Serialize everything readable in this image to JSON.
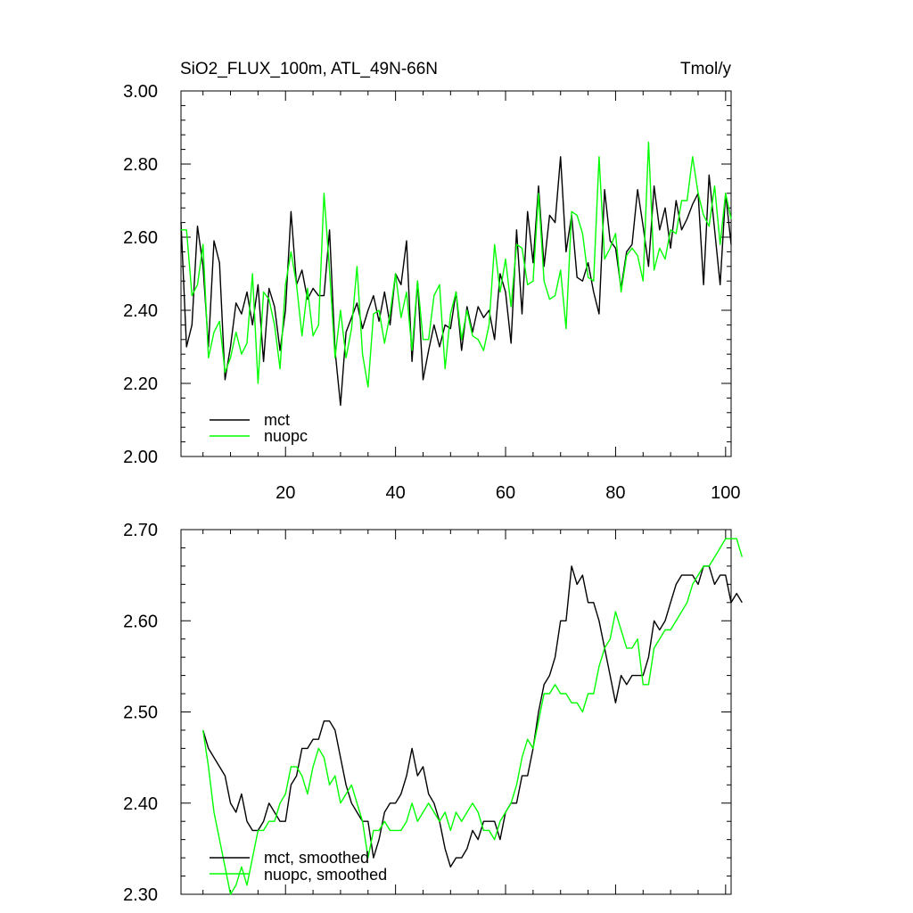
{
  "chart_data": [
    {
      "type": "line",
      "title": "SiO2_FLUX_100m, ATL_49N-66N",
      "units": "Tmol/y",
      "xlim": [
        1,
        101
      ],
      "ylim": [
        2.0,
        3.0
      ],
      "x_ticks": [
        20,
        40,
        60,
        80,
        100
      ],
      "x_tick_labels": [
        "20",
        "40",
        "60",
        "80",
        "100"
      ],
      "y_ticks": [
        2.0,
        2.2,
        2.4,
        2.6,
        2.8,
        3.0
      ],
      "y_tick_labels": [
        "2.00",
        "2.20",
        "2.40",
        "2.60",
        "2.80",
        "3.00"
      ],
      "legend_position": "bottom-left",
      "series": [
        {
          "name": "mct",
          "color": "#000000",
          "x_start": 1,
          "values": [
            2.64,
            2.3,
            2.36,
            2.63,
            2.52,
            2.3,
            2.59,
            2.53,
            2.21,
            2.3,
            2.42,
            2.39,
            2.45,
            2.36,
            2.47,
            2.26,
            2.46,
            2.41,
            2.29,
            2.4,
            2.67,
            2.47,
            2.51,
            2.43,
            2.46,
            2.44,
            2.44,
            2.62,
            2.29,
            2.14,
            2.34,
            2.38,
            2.42,
            2.35,
            2.4,
            2.44,
            2.37,
            2.45,
            2.36,
            2.5,
            2.47,
            2.59,
            2.26,
            2.48,
            2.21,
            2.29,
            2.36,
            2.3,
            2.36,
            2.35,
            2.45,
            2.29,
            2.41,
            2.34,
            2.41,
            2.38,
            2.4,
            2.32,
            2.5,
            2.45,
            2.31,
            2.62,
            2.39,
            2.67,
            2.53,
            2.74,
            2.52,
            2.66,
            2.64,
            2.82,
            2.56,
            2.66,
            2.49,
            2.48,
            2.53,
            2.45,
            2.39,
            2.73,
            2.59,
            2.57,
            2.46,
            2.56,
            2.58,
            2.73,
            2.63,
            2.52,
            2.74,
            2.62,
            2.68,
            2.57,
            2.7,
            2.62,
            2.65,
            2.69,
            2.72,
            2.47,
            2.77,
            2.62,
            2.47,
            2.72,
            2.58
          ]
        },
        {
          "name": "nuopc",
          "color": "#00ff00",
          "x_start": 1,
          "values": [
            2.62,
            2.62,
            2.44,
            2.47,
            2.58,
            2.27,
            2.34,
            2.37,
            2.23,
            2.27,
            2.34,
            2.28,
            2.31,
            2.5,
            2.2,
            2.45,
            2.43,
            2.36,
            2.24,
            2.47,
            2.56,
            2.47,
            2.33,
            2.46,
            2.33,
            2.36,
            2.72,
            2.51,
            2.27,
            2.4,
            2.27,
            2.35,
            2.52,
            2.28,
            2.19,
            2.39,
            2.4,
            2.31,
            2.39,
            2.5,
            2.38,
            2.45,
            2.29,
            2.48,
            2.32,
            2.32,
            2.44,
            2.47,
            2.24,
            2.39,
            2.45,
            2.32,
            2.4,
            2.33,
            2.32,
            2.29,
            2.36,
            2.58,
            2.45,
            2.54,
            2.41,
            2.58,
            2.57,
            2.47,
            2.48,
            2.72,
            2.48,
            2.43,
            2.44,
            2.51,
            2.35,
            2.67,
            2.66,
            2.61,
            2.49,
            2.48,
            2.82,
            2.54,
            2.57,
            2.61,
            2.45,
            2.55,
            2.57,
            2.55,
            2.48,
            2.86,
            2.51,
            2.57,
            2.54,
            2.62,
            2.61,
            2.7,
            2.7,
            2.82,
            2.72,
            2.66,
            2.63,
            2.74,
            2.58,
            2.72,
            2.65
          ]
        }
      ]
    },
    {
      "type": "line",
      "title": "",
      "xlim": [
        1,
        101
      ],
      "ylim": [
        2.3,
        2.7
      ],
      "x_ticks": [
        20,
        40,
        60,
        80,
        100
      ],
      "x_tick_labels": [],
      "y_ticks": [
        2.3,
        2.4,
        2.5,
        2.6,
        2.7
      ],
      "y_tick_labels": [
        "2.30",
        "2.40",
        "2.50",
        "2.60",
        "2.70"
      ],
      "legend_position": "bottom-left",
      "series": [
        {
          "name": "mct, smoothed",
          "color": "#000000",
          "x_start": 5,
          "values": [
            2.48,
            2.46,
            2.45,
            2.44,
            2.43,
            2.4,
            2.39,
            2.41,
            2.38,
            2.37,
            2.37,
            2.38,
            2.4,
            2.39,
            2.38,
            2.38,
            2.42,
            2.43,
            2.46,
            2.46,
            2.47,
            2.47,
            2.49,
            2.49,
            2.48,
            2.45,
            2.42,
            2.4,
            2.39,
            2.38,
            2.38,
            2.34,
            2.36,
            2.39,
            2.4,
            2.4,
            2.41,
            2.43,
            2.46,
            2.43,
            2.44,
            2.41,
            2.4,
            2.38,
            2.35,
            2.33,
            2.34,
            2.34,
            2.35,
            2.37,
            2.36,
            2.38,
            2.38,
            2.38,
            2.36,
            2.39,
            2.4,
            2.4,
            2.43,
            2.43,
            2.46,
            2.5,
            2.53,
            2.54,
            2.56,
            2.6,
            2.6,
            2.66,
            2.64,
            2.65,
            2.62,
            2.62,
            2.6,
            2.57,
            2.54,
            2.51,
            2.54,
            2.53,
            2.54,
            2.54,
            2.54,
            2.56,
            2.6,
            2.59,
            2.6,
            2.62,
            2.64,
            2.65,
            2.65,
            2.65,
            2.64,
            2.66,
            2.66,
            2.64,
            2.65,
            2.65,
            2.62,
            2.63,
            2.62
          ]
        },
        {
          "name": "nuopc, smoothed",
          "color": "#00ff00",
          "x_start": 5,
          "values": [
            2.48,
            2.44,
            2.39,
            2.36,
            2.33,
            2.3,
            2.31,
            2.33,
            2.31,
            2.34,
            2.37,
            2.37,
            2.38,
            2.38,
            2.4,
            2.41,
            2.44,
            2.44,
            2.43,
            2.41,
            2.44,
            2.46,
            2.45,
            2.42,
            2.43,
            2.4,
            2.41,
            2.42,
            2.4,
            2.38,
            2.34,
            2.37,
            2.37,
            2.38,
            2.37,
            2.37,
            2.37,
            2.38,
            2.4,
            2.38,
            2.39,
            2.4,
            2.39,
            2.38,
            2.39,
            2.37,
            2.39,
            2.38,
            2.39,
            2.4,
            2.39,
            2.37,
            2.37,
            2.36,
            2.38,
            2.39,
            2.4,
            2.42,
            2.45,
            2.47,
            2.46,
            2.49,
            2.52,
            2.52,
            2.53,
            2.52,
            2.52,
            2.51,
            2.51,
            2.5,
            2.52,
            2.52,
            2.55,
            2.57,
            2.58,
            2.61,
            2.59,
            2.57,
            2.57,
            2.58,
            2.53,
            2.53,
            2.57,
            2.58,
            2.59,
            2.59,
            2.6,
            2.61,
            2.62,
            2.64,
            2.65,
            2.66,
            2.66,
            2.67,
            2.68,
            2.69,
            2.69,
            2.69,
            2.67
          ]
        }
      ]
    }
  ]
}
